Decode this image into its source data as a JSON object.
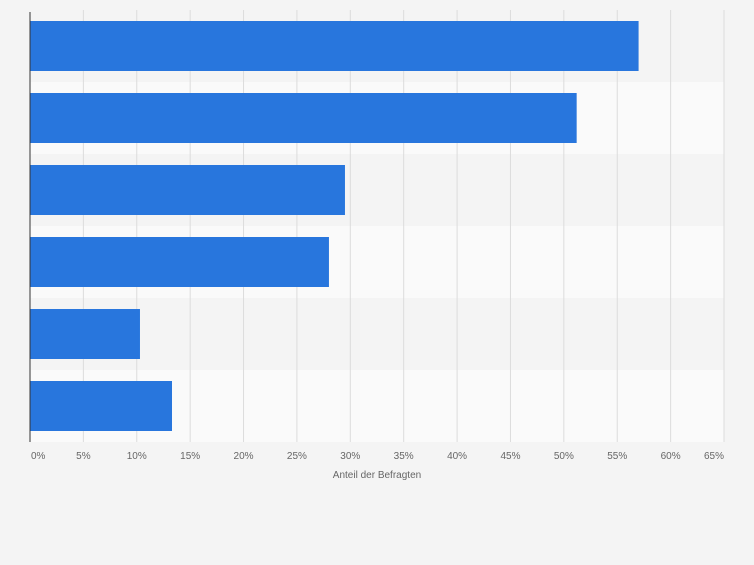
{
  "chart_data": {
    "type": "bar",
    "orientation": "horizontal",
    "categories": [
      "",
      "",
      "",
      "",
      "",
      ""
    ],
    "values": [
      57,
      51.2,
      29.5,
      28,
      10.3,
      13.3
    ],
    "xlabel": "Anteil der Befragten",
    "ylabel": "",
    "xlim": [
      0,
      65
    ],
    "x_ticks": [
      "0%",
      "5%",
      "10%",
      "15%",
      "20%",
      "25%",
      "30%",
      "35%",
      "40%",
      "45%",
      "50%",
      "55%",
      "60%",
      "65%"
    ],
    "tick_values": [
      0,
      5,
      10,
      15,
      20,
      25,
      30,
      35,
      40,
      45,
      50,
      55,
      60,
      65
    ],
    "grid": true,
    "legend": "none",
    "colors": {
      "bar": "#2876dd",
      "band_even": "#f4f4f4",
      "band_odd": "#fafafa",
      "grid": "#dcdcdc",
      "axis": "#333333",
      "tick_text": "#666666",
      "background": "#f4f4f4"
    }
  }
}
